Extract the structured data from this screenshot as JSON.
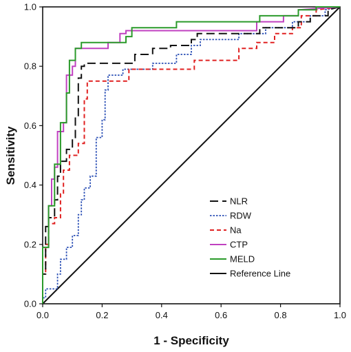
{
  "chart_data": {
    "type": "line",
    "title": "",
    "xlabel": "1 - Specificity",
    "ylabel": "Sensitivity",
    "xlim": [
      0,
      1
    ],
    "ylim": [
      0,
      1
    ],
    "xticks": [
      "0.0",
      "0.2",
      "0.4",
      "0.6",
      "0.8",
      "1.0"
    ],
    "yticks": [
      "0.0",
      "0.2",
      "0.4",
      "0.6",
      "0.8",
      "1.0"
    ],
    "grid": false,
    "legend_position": "bottom-right",
    "series": [
      {
        "name": "NLR",
        "color": "#111111",
        "dash": "long-dash",
        "points": [
          [
            0,
            0
          ],
          [
            0,
            0.1
          ],
          [
            0.01,
            0.1
          ],
          [
            0.01,
            0.26
          ],
          [
            0.02,
            0.26
          ],
          [
            0.02,
            0.29
          ],
          [
            0.04,
            0.29
          ],
          [
            0.04,
            0.35
          ],
          [
            0.05,
            0.35
          ],
          [
            0.05,
            0.43
          ],
          [
            0.06,
            0.43
          ],
          [
            0.06,
            0.48
          ],
          [
            0.08,
            0.48
          ],
          [
            0.08,
            0.52
          ],
          [
            0.1,
            0.52
          ],
          [
            0.1,
            0.56
          ],
          [
            0.11,
            0.56
          ],
          [
            0.11,
            0.63
          ],
          [
            0.12,
            0.63
          ],
          [
            0.12,
            0.76
          ],
          [
            0.13,
            0.76
          ],
          [
            0.13,
            0.8
          ],
          [
            0.14,
            0.8
          ],
          [
            0.14,
            0.81
          ],
          [
            0.31,
            0.81
          ],
          [
            0.31,
            0.84
          ],
          [
            0.37,
            0.84
          ],
          [
            0.37,
            0.86
          ],
          [
            0.43,
            0.86
          ],
          [
            0.43,
            0.87
          ],
          [
            0.5,
            0.87
          ],
          [
            0.5,
            0.89
          ],
          [
            0.52,
            0.89
          ],
          [
            0.52,
            0.91
          ],
          [
            0.73,
            0.91
          ],
          [
            0.73,
            0.93
          ],
          [
            0.86,
            0.93
          ],
          [
            0.86,
            0.95
          ],
          [
            0.9,
            0.95
          ],
          [
            0.9,
            0.97
          ],
          [
            0.96,
            0.97
          ],
          [
            0.96,
            0.99
          ],
          [
            1,
            1
          ]
        ]
      },
      {
        "name": "RDW",
        "color": "#2a4fb5",
        "dash": "dotted",
        "points": [
          [
            0,
            0
          ],
          [
            0,
            0.02
          ],
          [
            0.01,
            0.02
          ],
          [
            0.01,
            0.05
          ],
          [
            0.05,
            0.05
          ],
          [
            0.05,
            0.1
          ],
          [
            0.06,
            0.1
          ],
          [
            0.06,
            0.15
          ],
          [
            0.08,
            0.15
          ],
          [
            0.08,
            0.19
          ],
          [
            0.1,
            0.19
          ],
          [
            0.1,
            0.23
          ],
          [
            0.12,
            0.23
          ],
          [
            0.12,
            0.3
          ],
          [
            0.13,
            0.3
          ],
          [
            0.13,
            0.35
          ],
          [
            0.14,
            0.35
          ],
          [
            0.14,
            0.39
          ],
          [
            0.16,
            0.39
          ],
          [
            0.16,
            0.43
          ],
          [
            0.18,
            0.43
          ],
          [
            0.18,
            0.56
          ],
          [
            0.2,
            0.56
          ],
          [
            0.2,
            0.62
          ],
          [
            0.21,
            0.62
          ],
          [
            0.21,
            0.72
          ],
          [
            0.22,
            0.72
          ],
          [
            0.22,
            0.77
          ],
          [
            0.27,
            0.77
          ],
          [
            0.27,
            0.79
          ],
          [
            0.37,
            0.79
          ],
          [
            0.37,
            0.81
          ],
          [
            0.45,
            0.81
          ],
          [
            0.45,
            0.84
          ],
          [
            0.5,
            0.84
          ],
          [
            0.5,
            0.87
          ],
          [
            0.53,
            0.87
          ],
          [
            0.53,
            0.89
          ],
          [
            0.66,
            0.89
          ],
          [
            0.66,
            0.91
          ],
          [
            0.75,
            0.91
          ],
          [
            0.75,
            0.93
          ],
          [
            0.84,
            0.93
          ],
          [
            0.84,
            0.95
          ],
          [
            0.9,
            0.95
          ],
          [
            0.9,
            0.97
          ],
          [
            0.95,
            0.97
          ],
          [
            0.95,
            0.99
          ],
          [
            1,
            1
          ]
        ]
      },
      {
        "name": "Na",
        "color": "#e02020",
        "dash": "dashed",
        "points": [
          [
            0,
            0
          ],
          [
            0,
            0.1
          ],
          [
            0.01,
            0.1
          ],
          [
            0.01,
            0.2
          ],
          [
            0.02,
            0.2
          ],
          [
            0.02,
            0.27
          ],
          [
            0.04,
            0.27
          ],
          [
            0.04,
            0.29
          ],
          [
            0.06,
            0.29
          ],
          [
            0.06,
            0.37
          ],
          [
            0.07,
            0.37
          ],
          [
            0.07,
            0.45
          ],
          [
            0.09,
            0.45
          ],
          [
            0.09,
            0.5
          ],
          [
            0.12,
            0.5
          ],
          [
            0.12,
            0.54
          ],
          [
            0.14,
            0.54
          ],
          [
            0.14,
            0.69
          ],
          [
            0.15,
            0.69
          ],
          [
            0.15,
            0.75
          ],
          [
            0.29,
            0.75
          ],
          [
            0.29,
            0.79
          ],
          [
            0.51,
            0.79
          ],
          [
            0.51,
            0.82
          ],
          [
            0.66,
            0.82
          ],
          [
            0.66,
            0.86
          ],
          [
            0.72,
            0.86
          ],
          [
            0.72,
            0.88
          ],
          [
            0.78,
            0.88
          ],
          [
            0.78,
            0.91
          ],
          [
            0.84,
            0.91
          ],
          [
            0.84,
            0.93
          ],
          [
            0.87,
            0.93
          ],
          [
            0.87,
            0.97
          ],
          [
            0.92,
            0.97
          ],
          [
            0.92,
            0.99
          ],
          [
            1,
            1
          ]
        ]
      },
      {
        "name": "CTP",
        "color": "#c040c0",
        "dash": "solid",
        "points": [
          [
            0,
            0
          ],
          [
            0,
            0.19
          ],
          [
            0.02,
            0.19
          ],
          [
            0.02,
            0.33
          ],
          [
            0.03,
            0.33
          ],
          [
            0.03,
            0.42
          ],
          [
            0.04,
            0.42
          ],
          [
            0.04,
            0.46
          ],
          [
            0.05,
            0.46
          ],
          [
            0.05,
            0.58
          ],
          [
            0.07,
            0.58
          ],
          [
            0.07,
            0.61
          ],
          [
            0.08,
            0.61
          ],
          [
            0.08,
            0.77
          ],
          [
            0.1,
            0.77
          ],
          [
            0.1,
            0.8
          ],
          [
            0.11,
            0.8
          ],
          [
            0.11,
            0.86
          ],
          [
            0.22,
            0.86
          ],
          [
            0.22,
            0.88
          ],
          [
            0.26,
            0.88
          ],
          [
            0.26,
            0.91
          ],
          [
            0.28,
            0.91
          ],
          [
            0.28,
            0.92
          ],
          [
            0.72,
            0.92
          ],
          [
            0.72,
            0.95
          ],
          [
            0.81,
            0.95
          ],
          [
            0.81,
            0.97
          ],
          [
            0.86,
            0.97
          ],
          [
            0.86,
            0.99
          ],
          [
            1,
            1
          ]
        ]
      },
      {
        "name": "MELD",
        "color": "#2a9a2a",
        "dash": "solid",
        "points": [
          [
            0,
            0
          ],
          [
            0,
            0.19
          ],
          [
            0.02,
            0.19
          ],
          [
            0.02,
            0.33
          ],
          [
            0.04,
            0.33
          ],
          [
            0.04,
            0.47
          ],
          [
            0.06,
            0.47
          ],
          [
            0.06,
            0.61
          ],
          [
            0.08,
            0.61
          ],
          [
            0.08,
            0.71
          ],
          [
            0.09,
            0.71
          ],
          [
            0.09,
            0.82
          ],
          [
            0.11,
            0.82
          ],
          [
            0.11,
            0.86
          ],
          [
            0.13,
            0.86
          ],
          [
            0.13,
            0.88
          ],
          [
            0.28,
            0.88
          ],
          [
            0.28,
            0.9
          ],
          [
            0.3,
            0.9
          ],
          [
            0.3,
            0.93
          ],
          [
            0.45,
            0.93
          ],
          [
            0.45,
            0.95
          ],
          [
            0.73,
            0.95
          ],
          [
            0.73,
            0.97
          ],
          [
            0.86,
            0.97
          ],
          [
            0.86,
            0.99
          ],
          [
            0.92,
            0.99
          ],
          [
            0.92,
            1
          ],
          [
            1,
            1
          ]
        ]
      },
      {
        "name": "Reference Line",
        "color": "#111111",
        "dash": "solid",
        "points": [
          [
            0,
            0
          ],
          [
            1,
            1
          ]
        ]
      }
    ]
  }
}
